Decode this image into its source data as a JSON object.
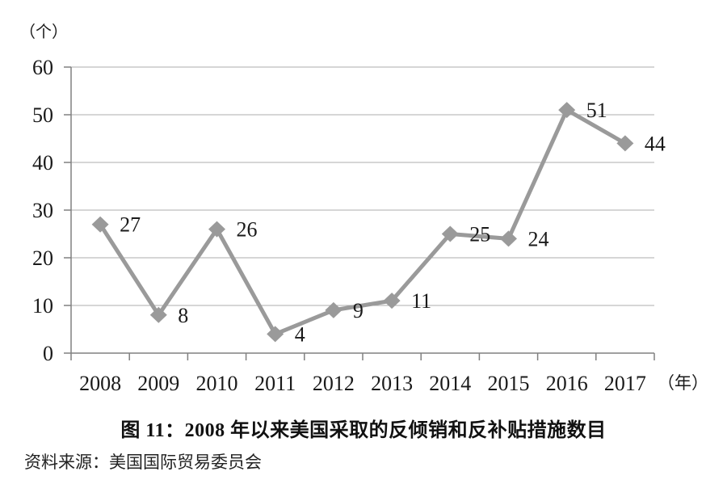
{
  "title": "图 11：2008 年以来美国采取的反倾销和反补贴措施数目",
  "source": "资料来源：美国国际贸易委员会",
  "chart_data": {
    "type": "line",
    "categories": [
      "2008",
      "2009",
      "2010",
      "2011",
      "2012",
      "2013",
      "2014",
      "2015",
      "2016",
      "2017"
    ],
    "values": [
      27,
      8,
      26,
      4,
      9,
      11,
      25,
      24,
      51,
      44
    ],
    "title": "图 11：2008 年以来美国采取的反倾销和反补贴措施数目",
    "xlabel": "（年）",
    "ylabel": "（个）",
    "ylim": [
      0,
      60
    ],
    "yticks": [
      0,
      10,
      20,
      30,
      40,
      50,
      60
    ],
    "grid": true,
    "legend": false,
    "marker": "diamond",
    "line_color": "#9a9a9a",
    "grid_color": "#adadad",
    "axis_color": "#808080",
    "text_color": "#1a1a1a",
    "data_labels": true
  }
}
